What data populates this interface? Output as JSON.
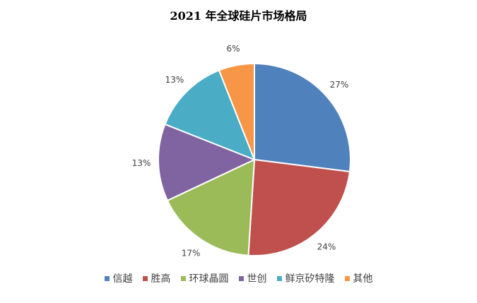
{
  "chart_data": {
    "type": "pie",
    "title": "2021 年全球硅片市场格局",
    "legend_position": "bottom",
    "slices": [
      {
        "name": "信越",
        "value": 27,
        "label": "27%",
        "color": "#4F81BD"
      },
      {
        "name": "胜高",
        "value": 24,
        "label": "24%",
        "color": "#C0504D"
      },
      {
        "name": "环球晶圆",
        "value": 17,
        "label": "17%",
        "color": "#9BBB59"
      },
      {
        "name": "世创",
        "value": 13,
        "label": "13%",
        "color": "#8064A2"
      },
      {
        "name": "鲜京矽特隆",
        "value": 13,
        "label": "13%",
        "color": "#4BACC6"
      },
      {
        "name": "其他",
        "value": 6,
        "label": "6%",
        "color": "#F79646"
      }
    ]
  }
}
